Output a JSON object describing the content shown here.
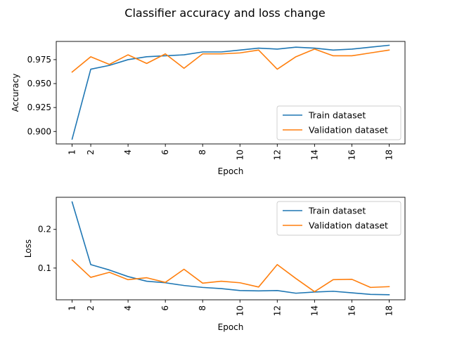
{
  "figure": {
    "suptitle": "Classifier accuracy and loss change"
  },
  "chart_data": [
    {
      "type": "line",
      "title": "",
      "xlabel": "Epoch",
      "ylabel": "Accuracy",
      "x": [
        1,
        2,
        3,
        4,
        5,
        6,
        7,
        8,
        9,
        10,
        11,
        12,
        13,
        14,
        15,
        16,
        17,
        18
      ],
      "xticks": [
        1,
        2,
        4,
        6,
        8,
        10,
        12,
        14,
        16,
        18
      ],
      "xlim": [
        0.15,
        18.85
      ],
      "yticks": [
        0.9,
        0.925,
        0.95,
        0.975
      ],
      "ytick_labels": [
        "0.900",
        "0.925",
        "0.950",
        "0.975"
      ],
      "ylim": [
        0.887,
        0.994
      ],
      "grid": false,
      "legend_position": "lower-right",
      "series": [
        {
          "name": "Train dataset",
          "color": "#1f77b4",
          "values": [
            0.892,
            0.965,
            0.969,
            0.975,
            0.978,
            0.979,
            0.98,
            0.983,
            0.983,
            0.985,
            0.987,
            0.986,
            0.988,
            0.987,
            0.985,
            0.986,
            0.988,
            0.99
          ]
        },
        {
          "name": "Validation dataset",
          "color": "#ff7f0e",
          "values": [
            0.962,
            0.978,
            0.97,
            0.98,
            0.971,
            0.981,
            0.966,
            0.981,
            0.981,
            0.982,
            0.985,
            0.965,
            0.978,
            0.986,
            0.979,
            0.979,
            0.982,
            0.985
          ]
        }
      ]
    },
    {
      "type": "line",
      "title": "",
      "xlabel": "Epoch",
      "ylabel": "Loss",
      "x": [
        1,
        2,
        3,
        4,
        5,
        6,
        7,
        8,
        9,
        10,
        11,
        12,
        13,
        14,
        15,
        16,
        17,
        18
      ],
      "xticks": [
        1,
        2,
        4,
        6,
        8,
        10,
        12,
        14,
        16,
        18
      ],
      "xlim": [
        0.15,
        18.85
      ],
      "yticks": [
        0.1,
        0.2
      ],
      "ytick_labels": [
        "0.1",
        "0.2"
      ],
      "ylim": [
        0.018,
        0.283
      ],
      "grid": false,
      "legend_position": "upper-right",
      "series": [
        {
          "name": "Train dataset",
          "color": "#1f77b4",
          "values": [
            0.271,
            0.109,
            0.095,
            0.078,
            0.066,
            0.062,
            0.055,
            0.05,
            0.047,
            0.042,
            0.041,
            0.042,
            0.035,
            0.038,
            0.04,
            0.036,
            0.032,
            0.031
          ]
        },
        {
          "name": "Validation dataset",
          "color": "#ff7f0e",
          "values": [
            0.121,
            0.076,
            0.089,
            0.07,
            0.075,
            0.063,
            0.097,
            0.061,
            0.066,
            0.062,
            0.051,
            0.109,
            0.073,
            0.039,
            0.07,
            0.071,
            0.05,
            0.052
          ]
        }
      ]
    }
  ]
}
